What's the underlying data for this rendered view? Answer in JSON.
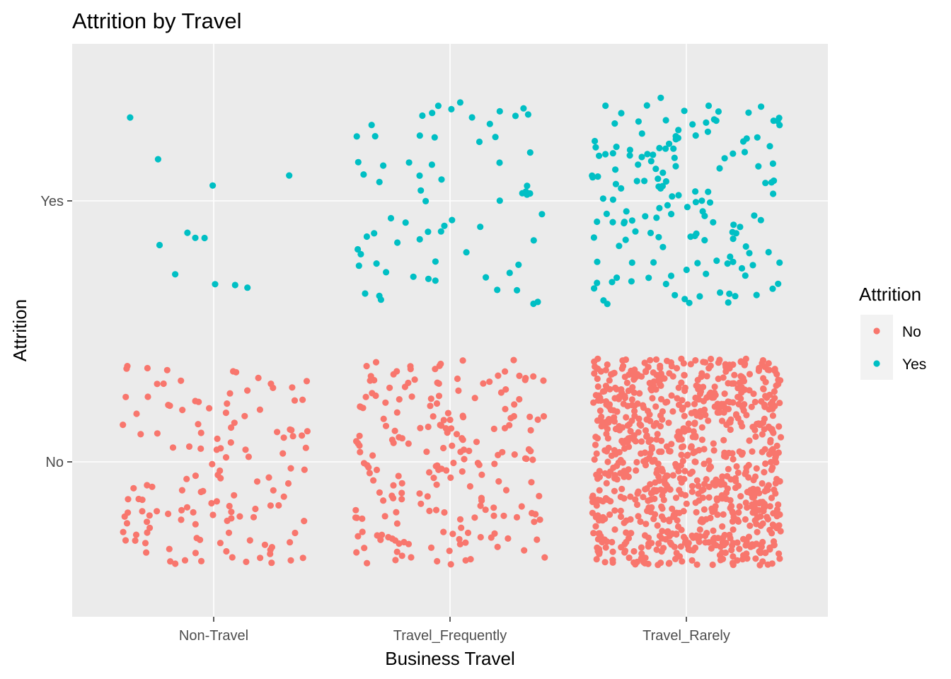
{
  "chart_data": {
    "type": "scatter",
    "title": "Attrition by Travel",
    "xlabel": "Business Travel",
    "ylabel": "Attrition",
    "categories": [
      "Non-Travel",
      "Travel_Frequently",
      "Travel_Rarely"
    ],
    "y_categories": [
      "No",
      "Yes"
    ],
    "jitter": true,
    "grid": true,
    "legend": {
      "title": "Attrition",
      "placement": "right",
      "entries": [
        {
          "label": "No",
          "color": "#F8766D"
        },
        {
          "label": "Yes",
          "color": "#00BFC4"
        }
      ]
    },
    "counts": {
      "Non-Travel": {
        "No": 138,
        "Yes": 12
      },
      "Travel_Frequently": {
        "No": 208,
        "Yes": 69
      },
      "Travel_Rarely": {
        "No": 887,
        "Yes": 156
      }
    },
    "colors": {
      "No": "#F8766D",
      "Yes": "#00BFC4",
      "panel": "#EBEBEB",
      "grid": "#FFFFFF"
    }
  }
}
